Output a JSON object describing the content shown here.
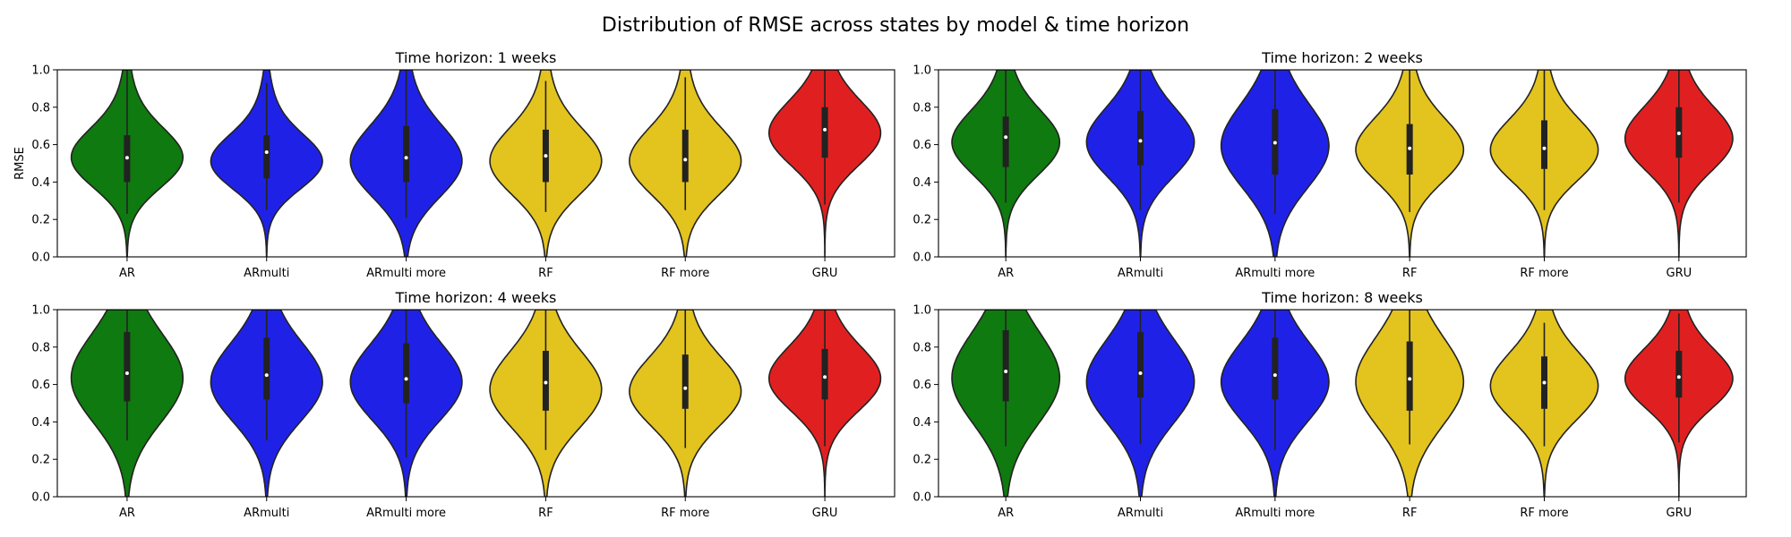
{
  "figure": {
    "title": "Distribution of RMSE across states by model & time horizon"
  },
  "chart_data": [
    {
      "type": "violin",
      "title": "Time horizon: 1 weeks",
      "xlabel": "",
      "ylabel": "RMSE",
      "ylim": [
        0,
        1.0
      ],
      "yticks": [
        "0.0",
        "0.2",
        "0.4",
        "0.6",
        "0.8",
        "1.0"
      ],
      "categories": [
        "AR",
        "ARmulti",
        "ARmulti more",
        "RF",
        "RF more",
        "GRU"
      ],
      "colors": [
        "#0f7a0f",
        "#1f22e6",
        "#1f22e6",
        "#e3c31e",
        "#e3c31e",
        "#e02020"
      ],
      "stats": [
        {
          "median": 0.53,
          "q1": 0.4,
          "q3": 0.65,
          "wmin": 0.23,
          "wmax": 1.0,
          "mode": 0.52
        },
        {
          "median": 0.56,
          "q1": 0.42,
          "q3": 0.65,
          "wmin": 0.25,
          "wmax": 0.93,
          "mode": 0.5
        },
        {
          "median": 0.53,
          "q1": 0.4,
          "q3": 0.7,
          "wmin": 0.21,
          "wmax": 1.0,
          "mode": 0.5
        },
        {
          "median": 0.54,
          "q1": 0.4,
          "q3": 0.68,
          "wmin": 0.24,
          "wmax": 0.94,
          "mode": 0.5
        },
        {
          "median": 0.52,
          "q1": 0.4,
          "q3": 0.68,
          "wmin": 0.25,
          "wmax": 0.96,
          "mode": 0.5
        },
        {
          "median": 0.68,
          "q1": 0.53,
          "q3": 0.8,
          "wmin": 0.28,
          "wmax": 1.0,
          "mode": 0.65
        }
      ]
    },
    {
      "type": "violin",
      "title": "Time horizon: 2 weeks",
      "xlabel": "",
      "ylabel": "",
      "ylim": [
        0,
        1.0
      ],
      "yticks": [
        "0.0",
        "0.2",
        "0.4",
        "0.6",
        "0.8",
        "1.0"
      ],
      "categories": [
        "AR",
        "ARmulti",
        "ARmulti more",
        "RF",
        "RF more",
        "GRU"
      ],
      "colors": [
        "#0f7a0f",
        "#1f22e6",
        "#1f22e6",
        "#e3c31e",
        "#e3c31e",
        "#e02020"
      ],
      "stats": [
        {
          "median": 0.64,
          "q1": 0.48,
          "q3": 0.75,
          "wmin": 0.29,
          "wmax": 1.0,
          "mode": 0.6
        },
        {
          "median": 0.62,
          "q1": 0.49,
          "q3": 0.78,
          "wmin": 0.25,
          "wmax": 1.0,
          "mode": 0.6
        },
        {
          "median": 0.61,
          "q1": 0.44,
          "q3": 0.79,
          "wmin": 0.23,
          "wmax": 1.0,
          "mode": 0.58
        },
        {
          "median": 0.58,
          "q1": 0.44,
          "q3": 0.71,
          "wmin": 0.24,
          "wmax": 1.0,
          "mode": 0.56
        },
        {
          "median": 0.58,
          "q1": 0.47,
          "q3": 0.73,
          "wmin": 0.25,
          "wmax": 1.0,
          "mode": 0.56
        },
        {
          "median": 0.66,
          "q1": 0.53,
          "q3": 0.8,
          "wmin": 0.29,
          "wmax": 1.0,
          "mode": 0.62
        }
      ]
    },
    {
      "type": "violin",
      "title": "Time horizon: 4 weeks",
      "xlabel": "",
      "ylabel": "",
      "ylim": [
        0,
        1.0
      ],
      "yticks": [
        "0.0",
        "0.2",
        "0.4",
        "0.6",
        "0.8",
        "1.0"
      ],
      "categories": [
        "AR",
        "ARmulti",
        "ARmulti more",
        "RF",
        "RF more",
        "GRU"
      ],
      "colors": [
        "#0f7a0f",
        "#1f22e6",
        "#1f22e6",
        "#e3c31e",
        "#e3c31e",
        "#e02020"
      ],
      "stats": [
        {
          "median": 0.66,
          "q1": 0.51,
          "q3": 0.88,
          "wmin": 0.3,
          "wmax": 1.0,
          "mode": 0.62
        },
        {
          "median": 0.65,
          "q1": 0.52,
          "q3": 0.85,
          "wmin": 0.3,
          "wmax": 1.0,
          "mode": 0.6
        },
        {
          "median": 0.63,
          "q1": 0.5,
          "q3": 0.82,
          "wmin": 0.21,
          "wmax": 1.0,
          "mode": 0.6
        },
        {
          "median": 0.61,
          "q1": 0.46,
          "q3": 0.78,
          "wmin": 0.25,
          "wmax": 1.0,
          "mode": 0.56
        },
        {
          "median": 0.58,
          "q1": 0.47,
          "q3": 0.76,
          "wmin": 0.26,
          "wmax": 1.0,
          "mode": 0.55
        },
        {
          "median": 0.64,
          "q1": 0.52,
          "q3": 0.79,
          "wmin": 0.27,
          "wmax": 1.0,
          "mode": 0.62
        }
      ]
    },
    {
      "type": "violin",
      "title": "Time horizon: 8 weeks",
      "xlabel": "",
      "ylabel": "",
      "ylim": [
        0,
        1.0
      ],
      "yticks": [
        "0.0",
        "0.2",
        "0.4",
        "0.6",
        "0.8",
        "1.0"
      ],
      "categories": [
        "AR",
        "ARmulti",
        "ARmulti more",
        "RF",
        "RF more",
        "GRU"
      ],
      "colors": [
        "#0f7a0f",
        "#1f22e6",
        "#1f22e6",
        "#e3c31e",
        "#e3c31e",
        "#e02020"
      ],
      "stats": [
        {
          "median": 0.67,
          "q1": 0.51,
          "q3": 0.89,
          "wmin": 0.27,
          "wmax": 1.0,
          "mode": 0.62
        },
        {
          "median": 0.66,
          "q1": 0.53,
          "q3": 0.88,
          "wmin": 0.28,
          "wmax": 1.0,
          "mode": 0.6
        },
        {
          "median": 0.65,
          "q1": 0.52,
          "q3": 0.85,
          "wmin": 0.25,
          "wmax": 1.0,
          "mode": 0.6
        },
        {
          "median": 0.63,
          "q1": 0.46,
          "q3": 0.83,
          "wmin": 0.28,
          "wmax": 1.0,
          "mode": 0.6
        },
        {
          "median": 0.61,
          "q1": 0.47,
          "q3": 0.75,
          "wmin": 0.27,
          "wmax": 0.93,
          "mode": 0.58
        },
        {
          "median": 0.64,
          "q1": 0.53,
          "q3": 0.78,
          "wmin": 0.29,
          "wmax": 0.98,
          "mode": 0.62
        }
      ]
    }
  ]
}
